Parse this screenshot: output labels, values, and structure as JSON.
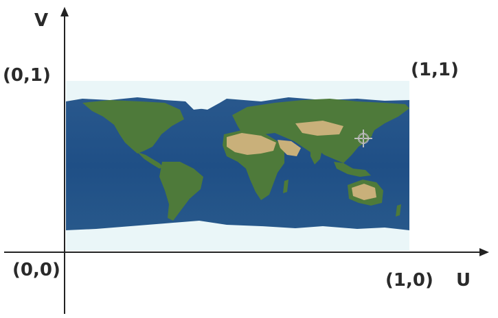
{
  "axes": {
    "horizontal_label": "U",
    "vertical_label": "V"
  },
  "corners": {
    "top_left": "(0,1)",
    "top_right": "(1,1)",
    "bottom_left": "(0,0)",
    "bottom_right": "(1,0)"
  },
  "image": {
    "content": "world-map",
    "ocean_color": "#1f4f86",
    "land_color": "#4e7a3a",
    "desert_color": "#c9b07a",
    "ice_color": "#eaf6f8"
  },
  "marker": {
    "icon": "crosshair-icon"
  }
}
